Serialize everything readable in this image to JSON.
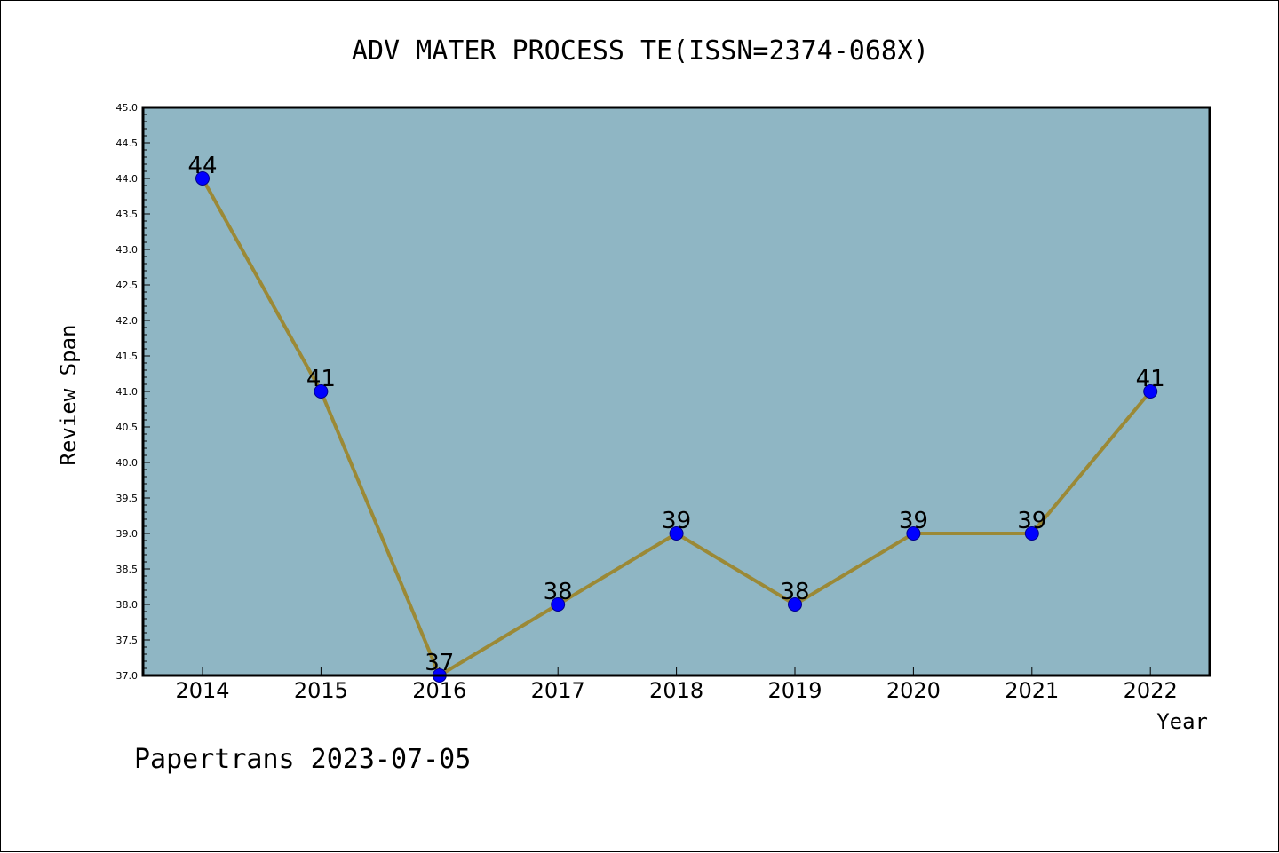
{
  "chart_data": {
    "type": "line",
    "title": "ADV MATER PROCESS TE(ISSN=2374-068X)",
    "xlabel": "Year",
    "ylabel": "Review Span",
    "categories": [
      "2014",
      "2015",
      "2016",
      "2017",
      "2018",
      "2019",
      "2020",
      "2021",
      "2022"
    ],
    "series": [
      {
        "values": [
          44,
          41,
          37,
          38,
          39,
          38,
          39,
          39,
          41
        ]
      }
    ],
    "data_labels": [
      "44",
      "41",
      "37",
      "38",
      "39",
      "38",
      "39",
      "39",
      "41"
    ],
    "ylim": [
      37.0,
      45.0
    ],
    "yticks": [
      "37.0",
      "37.5",
      "38.0",
      "38.5",
      "39.0",
      "39.5",
      "40.0",
      "40.5",
      "41.0",
      "41.5",
      "42.0",
      "42.5",
      "43.0",
      "43.5",
      "44.0",
      "44.5",
      "45.0"
    ],
    "grid": false,
    "legend": "none"
  },
  "footer": "Papertrans 2023-07-05",
  "colors": {
    "plot_background": "#8fb6c4",
    "line": "#9b8936",
    "marker_fill": "#0000ff",
    "marker_edge": "#00008b"
  }
}
